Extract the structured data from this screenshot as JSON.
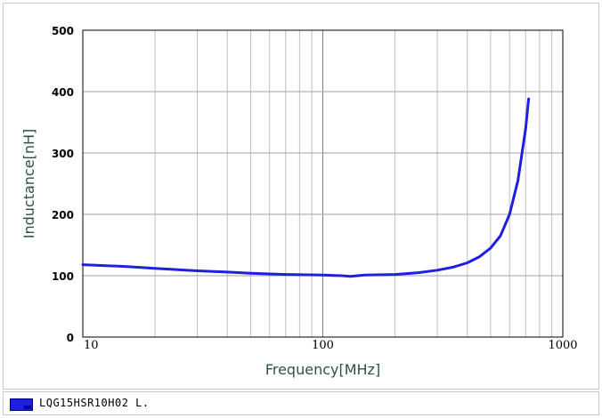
{
  "chart_data": {
    "type": "line",
    "xlabel": "Frequency[MHz]",
    "ylabel": "Inductance[nH]",
    "x_scale": "log",
    "xlim": [
      10,
      1000
    ],
    "ylim": [
      0,
      500
    ],
    "x_ticks": [
      "10",
      "100",
      "1000"
    ],
    "y_ticks": [
      "0",
      "100",
      "200",
      "300",
      "400",
      "500"
    ],
    "grid": true,
    "legend_position": "bottom",
    "series": [
      {
        "name": "LQG15HSR10H02  L.",
        "color": "#1f1fe0",
        "x": [
          10,
          15,
          20,
          30,
          40,
          50,
          70,
          100,
          120,
          130,
          150,
          200,
          250,
          300,
          350,
          400,
          450,
          500,
          550,
          600,
          650,
          700,
          720
        ],
        "y": [
          118,
          115,
          112,
          108,
          106,
          104,
          102,
          101,
          100,
          99,
          101,
          102,
          105,
          109,
          114,
          121,
          131,
          145,
          165,
          200,
          255,
          340,
          388
        ]
      }
    ]
  }
}
